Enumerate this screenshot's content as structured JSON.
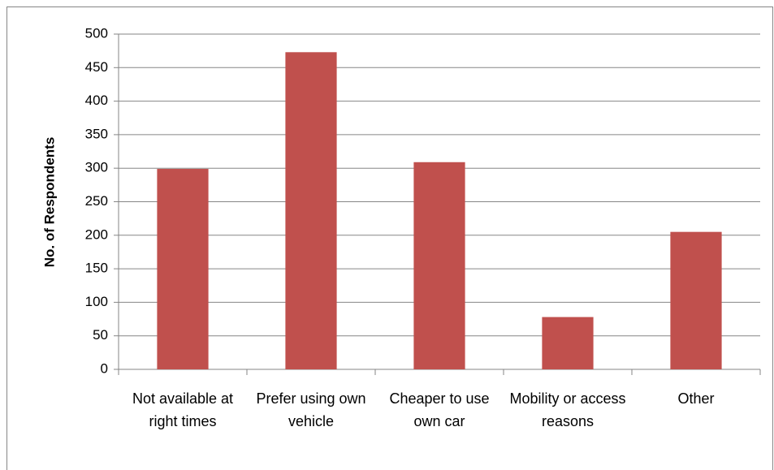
{
  "chart_data": {
    "type": "bar",
    "y_label": "No. of Respondents",
    "categories": [
      "Not available at right times",
      "Prefer using own vehicle",
      "Cheaper to use own car",
      "Mobility or access reasons",
      "Other"
    ],
    "values": [
      299,
      473,
      309,
      78,
      205
    ],
    "color": "#c0504d",
    "ylim": [
      0,
      500
    ],
    "yticks": [
      0,
      50,
      100,
      150,
      200,
      250,
      300,
      350,
      400,
      450,
      500
    ],
    "grid": true
  }
}
